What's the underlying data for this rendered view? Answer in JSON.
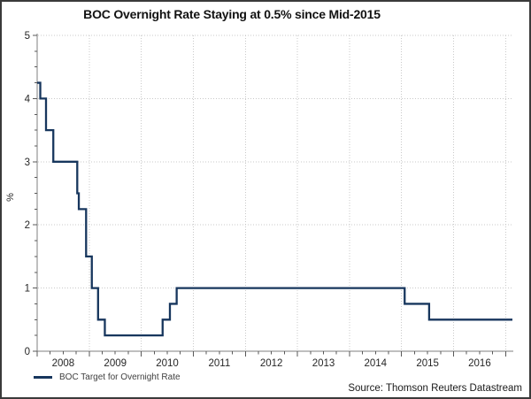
{
  "title": "BOC Overnight Rate Staying at 0.5% since Mid-2015",
  "y_axis_label": "%",
  "legend": {
    "label": "BOC Target for Overnight Rate"
  },
  "source": "Source: Thomson Reuters Datastream",
  "colors": {
    "line": "#17365d",
    "grid": "#c9c9c9",
    "axis": "#7f7f7f",
    "tick": "#595959",
    "text": "#262626",
    "border": "#3a3a3a",
    "background": "#ffffff"
  },
  "chart_data": {
    "type": "line",
    "title": "BOC Overnight Rate Staying at 0.5% since Mid-2015",
    "xlabel": "",
    "ylabel": "%",
    "ylim": [
      0,
      5
    ],
    "xlim": [
      2008.0,
      2017.13
    ],
    "y_ticks": [
      0,
      1,
      2,
      3,
      4,
      5
    ],
    "y_minor_step": 0.25,
    "x_minor_step": 0.25,
    "x_year_labels": [
      "2008",
      "2009",
      "2010",
      "2011",
      "2012",
      "2013",
      "2014",
      "2015",
      "2016"
    ],
    "grid": {
      "horizontal": true,
      "vertical": true,
      "line_style": "dotted"
    },
    "legend_position": "bottom-left",
    "step_mode": "step-after",
    "series": [
      {
        "name": "BOC Target for Overnight Rate",
        "color": "#17365d",
        "points": [
          {
            "x": 2008.0,
            "y": 4.25
          },
          {
            "x": 2008.06,
            "y": 4.0
          },
          {
            "x": 2008.17,
            "y": 3.5
          },
          {
            "x": 2008.31,
            "y": 3.0
          },
          {
            "x": 2008.77,
            "y": 2.5
          },
          {
            "x": 2008.8,
            "y": 2.25
          },
          {
            "x": 2008.94,
            "y": 1.5
          },
          {
            "x": 2009.05,
            "y": 1.0
          },
          {
            "x": 2009.17,
            "y": 0.5
          },
          {
            "x": 2009.3,
            "y": 0.25
          },
          {
            "x": 2010.41,
            "y": 0.5
          },
          {
            "x": 2010.55,
            "y": 0.75
          },
          {
            "x": 2010.68,
            "y": 1.0
          },
          {
            "x": 2015.06,
            "y": 0.75
          },
          {
            "x": 2015.53,
            "y": 0.5
          },
          {
            "x": 2017.13,
            "y": 0.5
          }
        ]
      }
    ]
  }
}
